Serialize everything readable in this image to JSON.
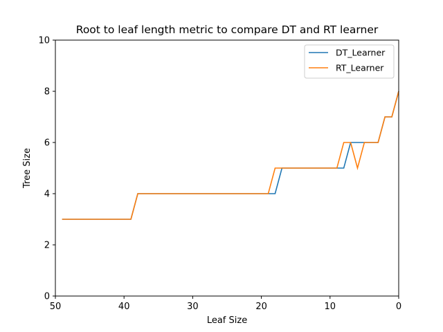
{
  "chart_data": {
    "type": "line",
    "title": "Root to leaf length metric to compare DT and RT learner",
    "xlabel": "Leaf Size",
    "ylabel": "Tree Size",
    "xlim": [
      50,
      0
    ],
    "ylim": [
      0,
      10
    ],
    "x_inverted": true,
    "xticks": [
      50,
      40,
      30,
      20,
      10,
      0
    ],
    "yticks": [
      0,
      2,
      4,
      6,
      8,
      10
    ],
    "grid": false,
    "legend_position": "top-right",
    "x": [
      49,
      48,
      47,
      46,
      45,
      44,
      43,
      42,
      41,
      40,
      39,
      38,
      37,
      36,
      35,
      34,
      33,
      32,
      31,
      30,
      29,
      28,
      27,
      26,
      25,
      24,
      23,
      22,
      21,
      20,
      19,
      18,
      17,
      16,
      15,
      14,
      13,
      12,
      11,
      10,
      9,
      8,
      7,
      6,
      5,
      4,
      3,
      2,
      1,
      0
    ],
    "series": [
      {
        "name": "DT_Learner",
        "color": "#1f77b4",
        "values": [
          3,
          3,
          3,
          3,
          3,
          3,
          3,
          3,
          3,
          3,
          3,
          4,
          4,
          4,
          4,
          4,
          4,
          4,
          4,
          4,
          4,
          4,
          4,
          4,
          4,
          4,
          4,
          4,
          4,
          4,
          4,
          4,
          5,
          5,
          5,
          5,
          5,
          5,
          5,
          5,
          5,
          5,
          6,
          6,
          6,
          6,
          6,
          7,
          7,
          8
        ]
      },
      {
        "name": "RT_Learner",
        "color": "#ff7f0e",
        "values": [
          3,
          3,
          3,
          3,
          3,
          3,
          3,
          3,
          3,
          3,
          3,
          4,
          4,
          4,
          4,
          4,
          4,
          4,
          4,
          4,
          4,
          4,
          4,
          4,
          4,
          4,
          4,
          4,
          4,
          4,
          4,
          5,
          5,
          5,
          5,
          5,
          5,
          5,
          5,
          5,
          5,
          6,
          6,
          5,
          6,
          6,
          6,
          7,
          7,
          8
        ]
      }
    ]
  }
}
